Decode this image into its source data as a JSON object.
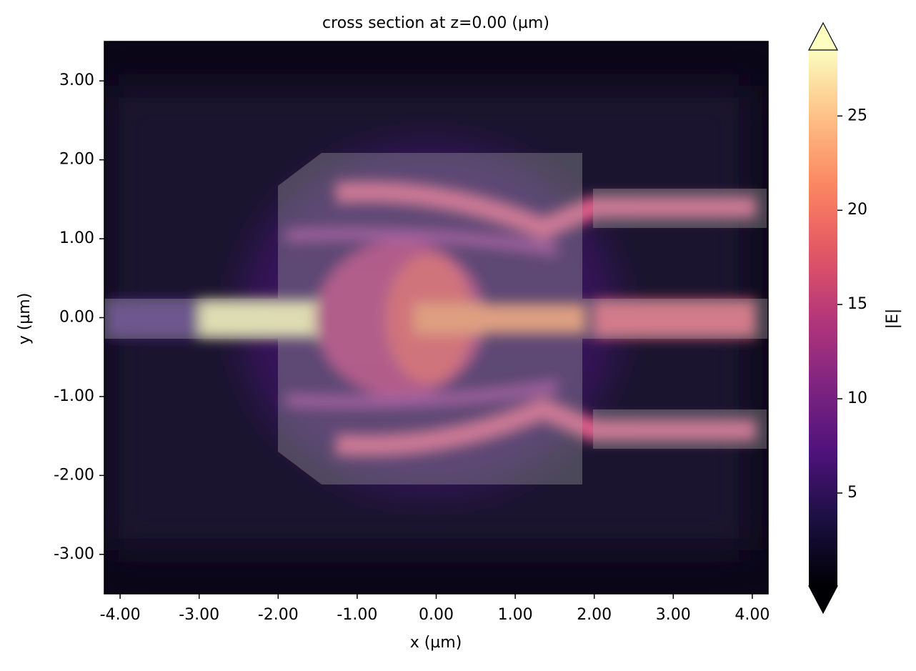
{
  "chart_data": {
    "type": "heatmap",
    "title": "cross section at z=0.00 (µm)",
    "x_label": "x (µm)",
    "y_label": "y (µm)",
    "colorbar_label": "|E|",
    "colormap": "magma",
    "xlim": [
      -4.2,
      4.2
    ],
    "ylim": [
      -3.5,
      3.5
    ],
    "xticks": [
      {
        "value": -4,
        "label": "-4.00"
      },
      {
        "value": -3,
        "label": "-3.00"
      },
      {
        "value": -2,
        "label": "-2.00"
      },
      {
        "value": -1,
        "label": "-1.00"
      },
      {
        "value": 0,
        "label": "0.00"
      },
      {
        "value": 1,
        "label": "1.00"
      },
      {
        "value": 2,
        "label": "2.00"
      },
      {
        "value": 3,
        "label": "3.00"
      },
      {
        "value": 4,
        "label": "4.00"
      }
    ],
    "yticks": [
      {
        "value": -3,
        "label": "-3.00"
      },
      {
        "value": -2,
        "label": "-2.00"
      },
      {
        "value": -1,
        "label": "-1.00"
      },
      {
        "value": 0,
        "label": "0.00"
      },
      {
        "value": 1,
        "label": "1.00"
      },
      {
        "value": 2,
        "label": "2.00"
      },
      {
        "value": 3,
        "label": "3.00"
      }
    ],
    "clim": [
      0.07,
      28.5
    ],
    "cticks": [
      5,
      10,
      15,
      20,
      25
    ]
  }
}
